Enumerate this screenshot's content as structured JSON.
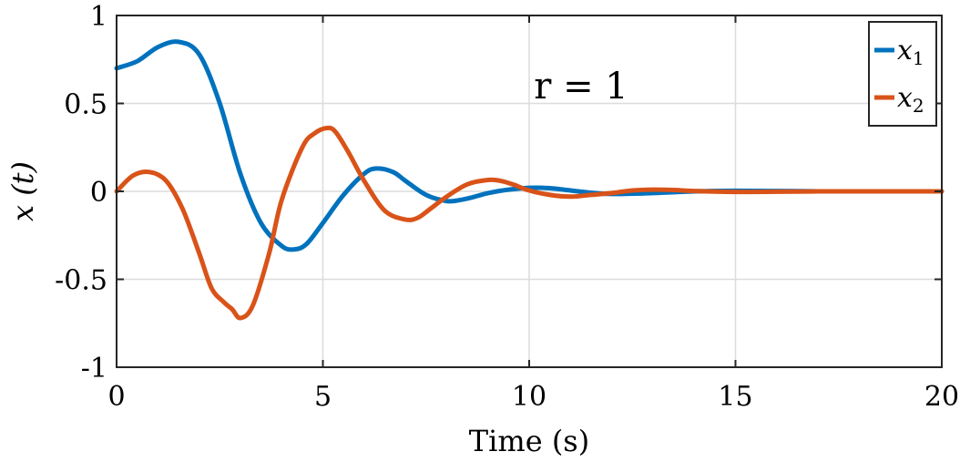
{
  "chart_data": {
    "type": "line",
    "title": "",
    "xlabel": "Time (s)",
    "ylabel": "x (t)",
    "xlim": [
      0,
      20
    ],
    "ylim": [
      -1,
      1
    ],
    "xticks": [
      0,
      5,
      10,
      15,
      20
    ],
    "xtick_labels": [
      "0",
      "5",
      "10",
      "15",
      "20"
    ],
    "yticks": [
      -1,
      -0.5,
      0,
      0.5,
      1
    ],
    "ytick_labels": [
      "-1",
      "-0.5",
      "0",
      "0.5",
      "1"
    ],
    "grid": true,
    "legend": "top-right",
    "annotation": "r = 1",
    "series": [
      {
        "name": "x1",
        "color": "#0072BD",
        "x": [
          0,
          0.5,
          1.0,
          1.5,
          2.0,
          2.5,
          3.0,
          3.5,
          4.0,
          4.3,
          4.6,
          5.0,
          5.5,
          6.0,
          6.3,
          6.7,
          7.0,
          7.5,
          8.0,
          8.3,
          8.6,
          9.0,
          9.5,
          10.0,
          10.5,
          11.0,
          11.5,
          12.0,
          13.0,
          14.0,
          15.0,
          16.0,
          17.0,
          18.0,
          19.0,
          20.0
        ],
        "y": [
          0.7,
          0.74,
          0.82,
          0.85,
          0.78,
          0.5,
          0.1,
          -0.18,
          -0.31,
          -0.33,
          -0.3,
          -0.18,
          -0.02,
          0.1,
          0.13,
          0.11,
          0.06,
          -0.02,
          -0.055,
          -0.05,
          -0.035,
          -0.01,
          0.01,
          0.02,
          0.018,
          0.005,
          -0.008,
          -0.015,
          -0.01,
          0.0,
          0.003,
          0.002,
          0.0,
          0.0,
          0.0,
          0.0
        ]
      },
      {
        "name": "x2",
        "color": "#D95319",
        "x": [
          0,
          0.4,
          0.8,
          1.2,
          1.6,
          2.0,
          2.3,
          2.6,
          2.8,
          3.0,
          3.3,
          3.7,
          4.0,
          4.5,
          4.8,
          5.1,
          5.3,
          5.6,
          6.0,
          6.5,
          7.0,
          7.3,
          7.6,
          8.0,
          8.5,
          9.0,
          9.3,
          9.6,
          10.0,
          10.5,
          11.0,
          11.5,
          12.0,
          12.5,
          13.0,
          13.5,
          14.0,
          15.0,
          16.0,
          17.0,
          18.0,
          19.0,
          20.0
        ],
        "y": [
          0.0,
          0.09,
          0.11,
          0.06,
          -0.1,
          -0.35,
          -0.55,
          -0.63,
          -0.67,
          -0.72,
          -0.65,
          -0.35,
          -0.05,
          0.25,
          0.33,
          0.36,
          0.34,
          0.23,
          0.06,
          -0.11,
          -0.16,
          -0.15,
          -0.1,
          -0.03,
          0.04,
          0.065,
          0.06,
          0.04,
          0.005,
          -0.02,
          -0.03,
          -0.02,
          -0.01,
          0.005,
          0.01,
          0.008,
          0.002,
          -0.003,
          -0.002,
          0.0,
          0.0,
          0.0,
          0.0
        ]
      }
    ]
  },
  "legend": {
    "items": [
      {
        "label": "x",
        "sub": "1",
        "color": "#0072BD"
      },
      {
        "label": "x",
        "sub": "2",
        "color": "#D95319"
      }
    ]
  }
}
